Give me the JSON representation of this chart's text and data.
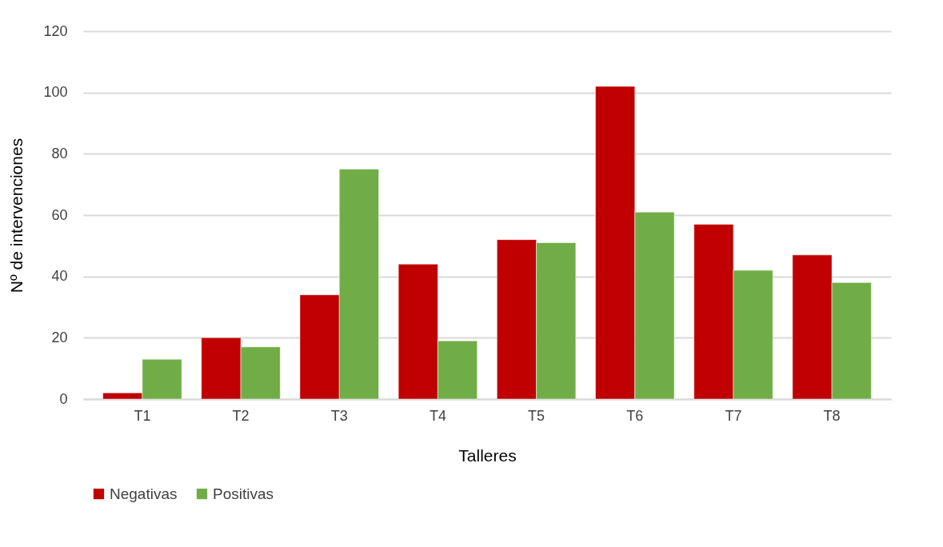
{
  "chart_data": {
    "type": "bar",
    "xlabel": "Talleres",
    "ylabel": "Nº de intervenciones",
    "categories": [
      "T1",
      "T2",
      "T3",
      "T4",
      "T5",
      "T6",
      "T7",
      "T8"
    ],
    "series": [
      {
        "name": "Negativas",
        "color": "#c00000",
        "values": [
          2,
          20,
          34,
          44,
          52,
          102,
          57,
          47
        ]
      },
      {
        "name": "Positivas",
        "color": "#70ad47",
        "values": [
          13,
          17,
          75,
          19,
          51,
          61,
          42,
          38
        ]
      }
    ],
    "ylim": [
      0,
      120
    ],
    "yticks": [
      0,
      20,
      40,
      60,
      80,
      100,
      120
    ],
    "grid": "y",
    "legend": "bottom"
  }
}
